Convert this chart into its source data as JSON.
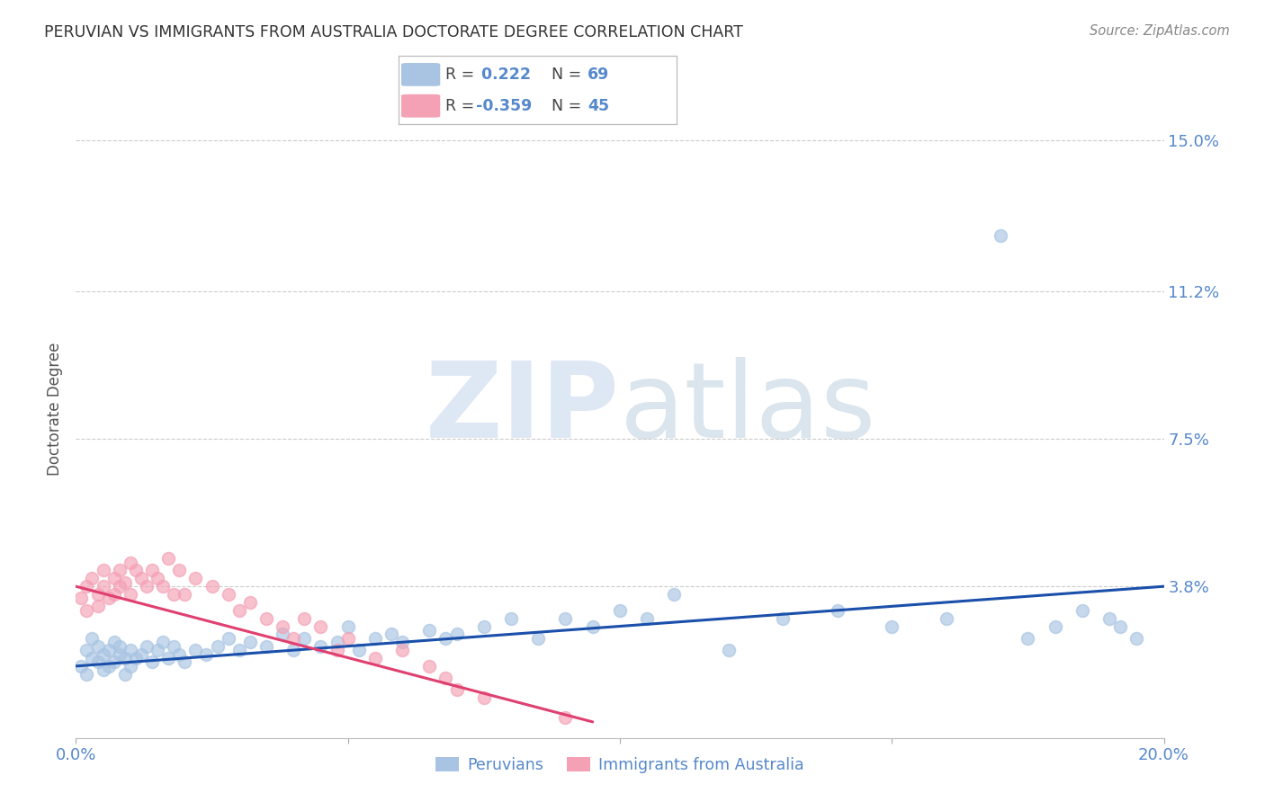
{
  "title": "PERUVIAN VS IMMIGRANTS FROM AUSTRALIA DOCTORATE DEGREE CORRELATION CHART",
  "source": "Source: ZipAtlas.com",
  "ylabel": "Doctorate Degree",
  "watermark_zip": "ZIP",
  "watermark_atlas": "atlas",
  "xlim": [
    0.0,
    0.2
  ],
  "ylim": [
    0.0,
    0.165
  ],
  "yticks": [
    0.038,
    0.075,
    0.112,
    0.15
  ],
  "ytick_labels": [
    "3.8%",
    "7.5%",
    "11.2%",
    "15.0%"
  ],
  "xtick_vals": [
    0.0,
    0.05,
    0.1,
    0.15,
    0.2
  ],
  "xtick_labels": [
    "0.0%",
    "",
    "",
    "",
    "20.0%"
  ],
  "blue_R": 0.222,
  "blue_N": 69,
  "pink_R": -0.359,
  "pink_N": 45,
  "blue_color": "#a8c4e2",
  "pink_color": "#f4a0b5",
  "blue_line_color": "#1a4faa",
  "pink_line_color": "#e04070",
  "legend_label_blue": "Peruvians",
  "legend_label_pink": "Immigrants from Australia",
  "title_color": "#333333",
  "axis_label_color": "#5588cc",
  "grid_color": "#cccccc",
  "blue_scatter_x": [
    0.001,
    0.002,
    0.002,
    0.003,
    0.003,
    0.004,
    0.004,
    0.005,
    0.005,
    0.006,
    0.006,
    0.007,
    0.007,
    0.008,
    0.008,
    0.009,
    0.009,
    0.01,
    0.01,
    0.011,
    0.012,
    0.013,
    0.014,
    0.015,
    0.016,
    0.017,
    0.018,
    0.019,
    0.02,
    0.022,
    0.024,
    0.026,
    0.028,
    0.03,
    0.032,
    0.035,
    0.038,
    0.04,
    0.042,
    0.045,
    0.048,
    0.05,
    0.052,
    0.055,
    0.058,
    0.06,
    0.065,
    0.068,
    0.07,
    0.075,
    0.08,
    0.085,
    0.09,
    0.095,
    0.1,
    0.105,
    0.11,
    0.12,
    0.13,
    0.14,
    0.15,
    0.16,
    0.17,
    0.175,
    0.18,
    0.185,
    0.19,
    0.192,
    0.195
  ],
  "blue_scatter_y": [
    0.018,
    0.022,
    0.016,
    0.02,
    0.025,
    0.019,
    0.023,
    0.021,
    0.017,
    0.022,
    0.018,
    0.024,
    0.019,
    0.021,
    0.023,
    0.02,
    0.016,
    0.022,
    0.018,
    0.02,
    0.021,
    0.023,
    0.019,
    0.022,
    0.024,
    0.02,
    0.023,
    0.021,
    0.019,
    0.022,
    0.021,
    0.023,
    0.025,
    0.022,
    0.024,
    0.023,
    0.026,
    0.022,
    0.025,
    0.023,
    0.024,
    0.028,
    0.022,
    0.025,
    0.026,
    0.024,
    0.027,
    0.025,
    0.026,
    0.028,
    0.03,
    0.025,
    0.03,
    0.028,
    0.032,
    0.03,
    0.036,
    0.022,
    0.03,
    0.032,
    0.028,
    0.03,
    0.126,
    0.025,
    0.028,
    0.032,
    0.03,
    0.028,
    0.025
  ],
  "pink_scatter_x": [
    0.001,
    0.002,
    0.002,
    0.003,
    0.004,
    0.004,
    0.005,
    0.005,
    0.006,
    0.007,
    0.007,
    0.008,
    0.008,
    0.009,
    0.01,
    0.01,
    0.011,
    0.012,
    0.013,
    0.014,
    0.015,
    0.016,
    0.017,
    0.018,
    0.019,
    0.02,
    0.022,
    0.025,
    0.028,
    0.03,
    0.032,
    0.035,
    0.038,
    0.04,
    0.042,
    0.045,
    0.048,
    0.05,
    0.055,
    0.06,
    0.065,
    0.068,
    0.07,
    0.075,
    0.09
  ],
  "pink_scatter_y": [
    0.035,
    0.038,
    0.032,
    0.04,
    0.036,
    0.033,
    0.042,
    0.038,
    0.035,
    0.04,
    0.036,
    0.038,
    0.042,
    0.039,
    0.044,
    0.036,
    0.042,
    0.04,
    0.038,
    0.042,
    0.04,
    0.038,
    0.045,
    0.036,
    0.042,
    0.036,
    0.04,
    0.038,
    0.036,
    0.032,
    0.034,
    0.03,
    0.028,
    0.025,
    0.03,
    0.028,
    0.022,
    0.025,
    0.02,
    0.022,
    0.018,
    0.015,
    0.012,
    0.01,
    0.005
  ],
  "blue_line_x": [
    0.0,
    0.2
  ],
  "blue_line_y": [
    0.018,
    0.038
  ],
  "pink_line_x": [
    0.0,
    0.095
  ],
  "pink_line_y": [
    0.038,
    0.004
  ]
}
